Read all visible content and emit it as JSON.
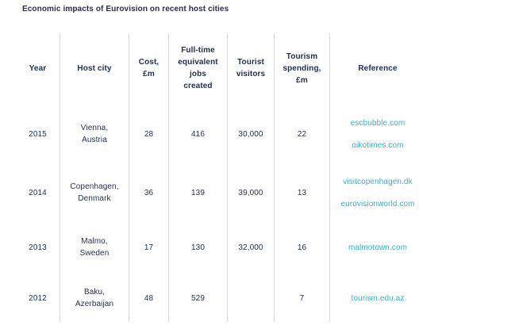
{
  "title": "Economic impacts of Eurovision on recent host cities",
  "colors": {
    "navy": "#22304f",
    "teal": "#2fb4c1",
    "line": "#d9d9dc"
  },
  "table": {
    "headers": [
      "Year",
      "Host city",
      "Cost,\n£m",
      "Full-time\nequivalent\njobs\ncreated",
      "Tourist\nvisitors",
      "Tourism\nspending,\n£m",
      "Reference"
    ],
    "rows": [
      {
        "year": "2015",
        "host_city": "Vienna,\nAustria",
        "cost": "28",
        "jobs": "416",
        "visitors": "30,000",
        "spending": "22",
        "references": [
          "escbubble.com",
          "oikotimes.com"
        ]
      },
      {
        "year": "2014",
        "host_city": "Copenhagen,\nDenmark",
        "cost": "36",
        "jobs": "139",
        "visitors": "39,000",
        "spending": "13",
        "references": [
          "visitcopenhagen.dk",
          "eurovisionworld.com"
        ]
      },
      {
        "year": "2013",
        "host_city": "Malmo,\nSweden",
        "cost": "17",
        "jobs": "130",
        "visitors": "32,000",
        "spending": "16",
        "references": [
          "malmotown.com"
        ]
      },
      {
        "year": "2012",
        "host_city": "Baku,\nAzerbaijan",
        "cost": "48",
        "jobs": "529",
        "visitors": "",
        "spending": "7",
        "references": [
          "tourism.edu.az"
        ]
      }
    ]
  }
}
